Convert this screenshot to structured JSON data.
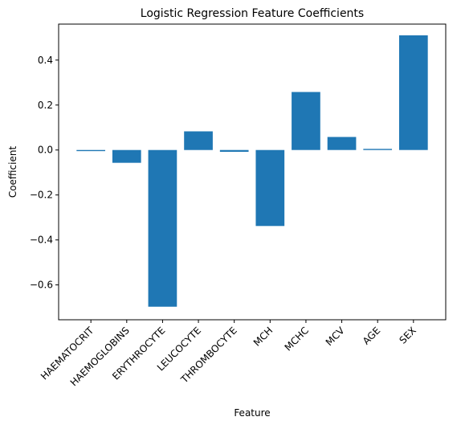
{
  "chart_data": {
    "type": "bar",
    "title": "Logistic Regression Feature Coefficients",
    "xlabel": "Feature",
    "ylabel": "Coefficient",
    "categories": [
      "HAEMATOCRIT",
      "HAEMOGLOBINS",
      "ERYTHROCYTE",
      "LEUCOCYTE",
      "THROMBOCYTE",
      "MCH",
      "MCHC",
      "MCV",
      "AGE",
      "SEX"
    ],
    "values": [
      -0.005,
      -0.057,
      -0.697,
      0.083,
      -0.008,
      -0.338,
      0.258,
      0.058,
      0.005,
      0.51
    ],
    "ylim": [
      -0.755,
      0.56
    ],
    "yticks": [
      -0.6,
      -0.4,
      -0.2,
      0.0,
      0.2,
      0.4
    ],
    "ytick_labels": [
      "−0.6",
      "−0.4",
      "−0.2",
      "0.0",
      "0.2",
      "0.4"
    ],
    "grid": false,
    "bar_color": "#1f77b4"
  }
}
